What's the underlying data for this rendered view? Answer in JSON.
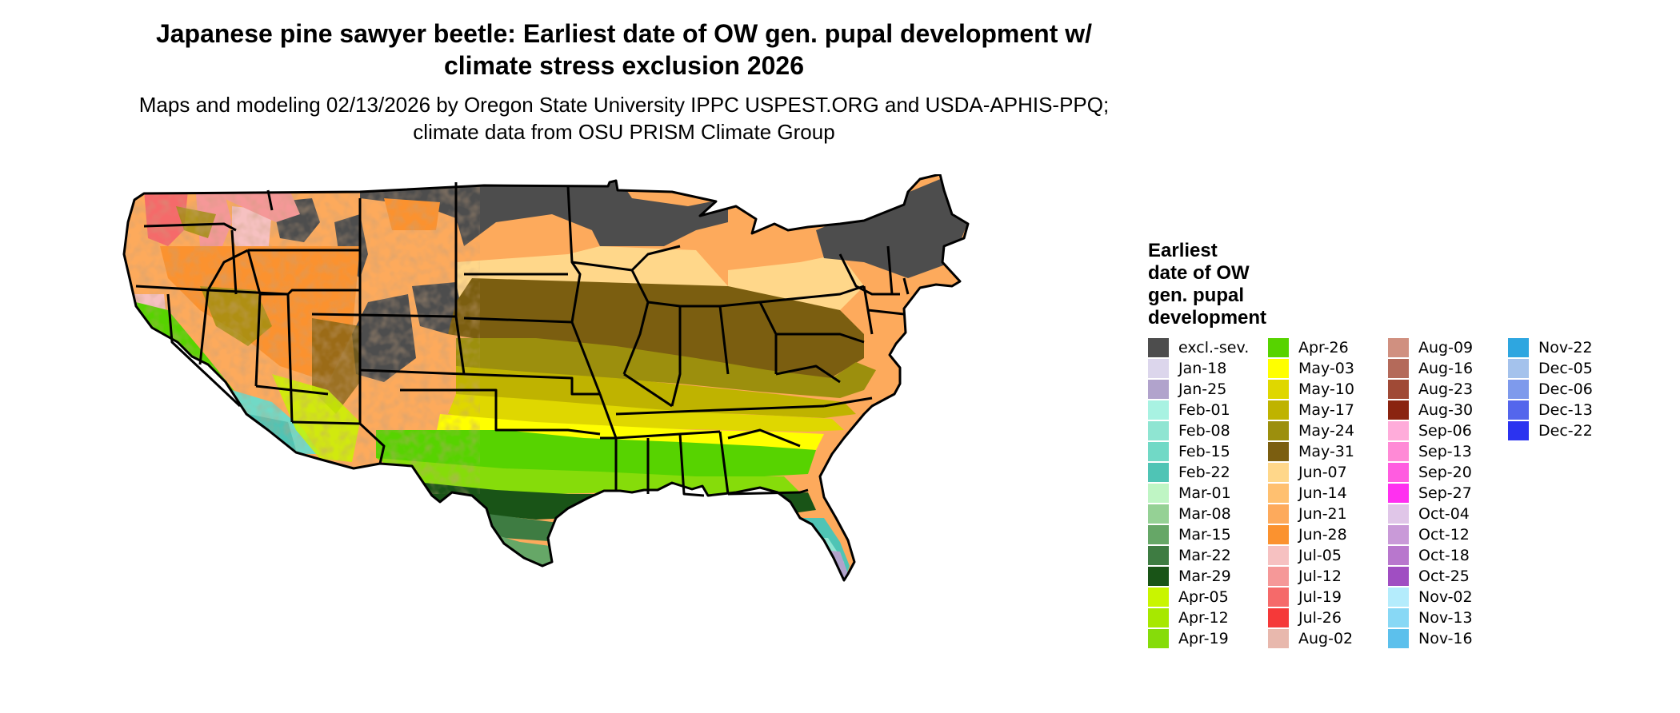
{
  "map": {
    "title": "Japanese pine sawyer beetle: Earliest date of OW gen. pupal development w/ climate stress exclusion 2026",
    "subtitle": "Maps and modeling 02/13/2026 by Oregon State University IPPC USPEST.ORG and USDA-APHIS-PPQ; climate data from OSU PRISM Climate Group",
    "region": "Continental United States",
    "legend": {
      "title": "Earliest date of OW gen. pupal development",
      "items": [
        {
          "label": "excl.-sev.",
          "color": "#4d4d4d"
        },
        {
          "label": "Jan-18",
          "color": "#dcd6ec"
        },
        {
          "label": "Jan-25",
          "color": "#b1a3cc"
        },
        {
          "label": "Feb-01",
          "color": "#a8f2e2"
        },
        {
          "label": "Feb-08",
          "color": "#8fe5d2"
        },
        {
          "label": "Feb-15",
          "color": "#71d9c6"
        },
        {
          "label": "Feb-22",
          "color": "#4fc4b5"
        },
        {
          "label": "Mar-01",
          "color": "#bff5c4"
        },
        {
          "label": "Mar-08",
          "color": "#95d195"
        },
        {
          "label": "Mar-15",
          "color": "#66a767"
        },
        {
          "label": "Mar-22",
          "color": "#3e7c42"
        },
        {
          "label": "Mar-29",
          "color": "#195417"
        },
        {
          "label": "Apr-05",
          "color": "#c9f500"
        },
        {
          "label": "Apr-12",
          "color": "#a7e800"
        },
        {
          "label": "Apr-19",
          "color": "#86dc0a"
        },
        {
          "label": "Apr-26",
          "color": "#57d300"
        },
        {
          "label": "May-03",
          "color": "#ffff00"
        },
        {
          "label": "May-10",
          "color": "#dfd700"
        },
        {
          "label": "May-17",
          "color": "#bfb300"
        },
        {
          "label": "May-24",
          "color": "#9c8f0d"
        },
        {
          "label": "May-31",
          "color": "#7b5e10"
        },
        {
          "label": "Jun-07",
          "color": "#ffd78a"
        },
        {
          "label": "Jun-14",
          "color": "#ffc070"
        },
        {
          "label": "Jun-21",
          "color": "#fdaa5c"
        },
        {
          "label": "Jun-28",
          "color": "#fb922f"
        },
        {
          "label": "Jul-05",
          "color": "#f6c1c1"
        },
        {
          "label": "Jul-12",
          "color": "#f59898"
        },
        {
          "label": "Jul-19",
          "color": "#f56a6a"
        },
        {
          "label": "Jul-26",
          "color": "#f53939"
        },
        {
          "label": "Aug-02",
          "color": "#e8b8ad"
        },
        {
          "label": "Aug-09",
          "color": "#d09080"
        },
        {
          "label": "Aug-16",
          "color": "#b46a5a"
        },
        {
          "label": "Aug-23",
          "color": "#a04a36"
        },
        {
          "label": "Aug-30",
          "color": "#8a2410"
        },
        {
          "label": "Sep-06",
          "color": "#ffacda"
        },
        {
          "label": "Sep-13",
          "color": "#ff8ad6"
        },
        {
          "label": "Sep-20",
          "color": "#ff5ce0"
        },
        {
          "label": "Sep-27",
          "color": "#ff30f0"
        },
        {
          "label": "Oct-04",
          "color": "#e0c6e8"
        },
        {
          "label": "Oct-12",
          "color": "#c99ad8"
        },
        {
          "label": "Oct-18",
          "color": "#b877cd"
        },
        {
          "label": "Oct-25",
          "color": "#a04ec2"
        },
        {
          "label": "Nov-02",
          "color": "#b4ecfc"
        },
        {
          "label": "Nov-13",
          "color": "#88d8f5"
        },
        {
          "label": "Nov-16",
          "color": "#5cc0ec"
        },
        {
          "label": "Nov-22",
          "color": "#2ea6e0"
        },
        {
          "label": "Dec-05",
          "color": "#a4c2ec"
        },
        {
          "label": "Dec-06",
          "color": "#7e9aec"
        },
        {
          "label": "Dec-13",
          "color": "#5466ec"
        },
        {
          "label": "Dec-22",
          "color": "#2b33f0"
        }
      ]
    }
  }
}
